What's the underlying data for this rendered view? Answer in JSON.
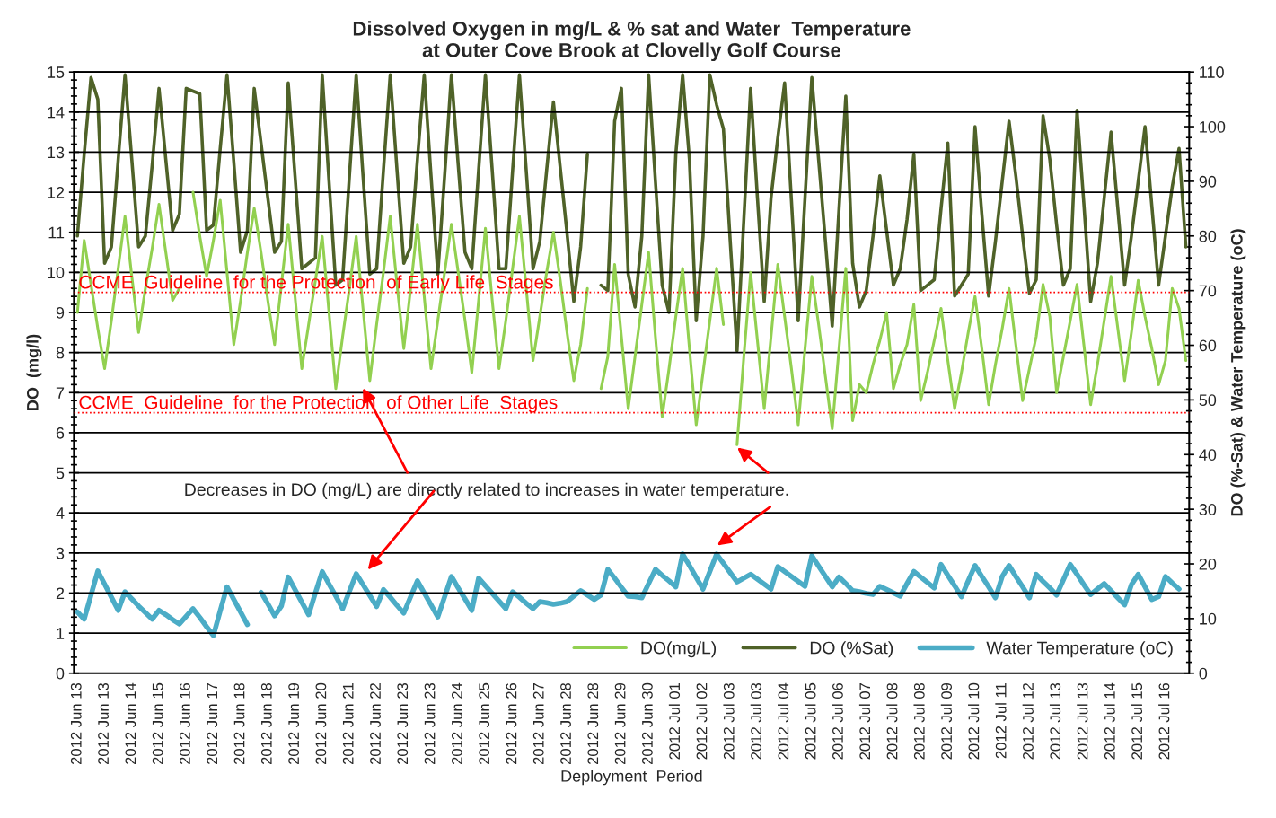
{
  "chart_data": {
    "type": "line",
    "title": "Dissolved Oxygen in mg/L & % sat and Water  Temperature\nat Outer Cove Brook at Clovelly Golf Course",
    "xlabel": "Deployment  Period",
    "ylabel": "DO  (mg/l)",
    "y2label": "DO (%-Sat) & Water Temperature (oC)",
    "categories": [
      "2012 Jun 13",
      null,
      null,
      null,
      "2012 Jun 13",
      null,
      null,
      null,
      "2012 Jun 14",
      null,
      null,
      null,
      "2012 Jun 15",
      null,
      null,
      null,
      "2012 Jun 16",
      null,
      null,
      null,
      "2012 Jun 17",
      null,
      null,
      null,
      "2012 Jun 18",
      null,
      null,
      null,
      "2012 Jun 18",
      null,
      null,
      null,
      "2012 Jun 19",
      null,
      null,
      null,
      "2012 Jun 20",
      null,
      null,
      null,
      "2012 Jun 21",
      null,
      null,
      null,
      "2012 Jun 22",
      null,
      null,
      null,
      "2012 Jun 23",
      null,
      null,
      null,
      "2012 Jun 23",
      null,
      null,
      null,
      "2012 Jun 24",
      null,
      null,
      null,
      "2012 Jun 25",
      null,
      null,
      null,
      "2012 Jun 26",
      null,
      null,
      null,
      "2012 Jun 27",
      null,
      null,
      null,
      "2012 Jun 28",
      null,
      null,
      null,
      "2012 Jun 28",
      null,
      null,
      null,
      "2012 Jun 29",
      null,
      null,
      null,
      "2012 Jun 30",
      null,
      null,
      null,
      "2012 Jul 01",
      null,
      null,
      null,
      "2012 Jul 02",
      null,
      null,
      null,
      "2012 Jul 03",
      null,
      null,
      null,
      "2012 Jul 03",
      null,
      null,
      null,
      "2012 Jul 04",
      null,
      null,
      null,
      "2012 Jul 05",
      null,
      null,
      null,
      "2012 Jul 06",
      null,
      null,
      null,
      "2012 Jul 07",
      null,
      null,
      null,
      "2012 Jul 08",
      null,
      null,
      null,
      "2012 Jul 08",
      null,
      null,
      null,
      "2012 Jul 09",
      null,
      null,
      null,
      "2012 Jul 10",
      null,
      null,
      null,
      "2012 Jul 11",
      null,
      null,
      null,
      "2012 Jul 12",
      null,
      null,
      null,
      "2012 Jul 13",
      null,
      null,
      null,
      "2012 Jul 13",
      null,
      null,
      null,
      "2012 Jul 14",
      null,
      null,
      null,
      "2012 Jul 15",
      null,
      null,
      null,
      "2012 Jul 16",
      null,
      null,
      null
    ],
    "ylim": [
      0,
      15
    ],
    "yticks": [
      0,
      1,
      2,
      3,
      4,
      5,
      6,
      7,
      8,
      9,
      10,
      11,
      12,
      13,
      14,
      15
    ],
    "y2lim": [
      0,
      110
    ],
    "y2ticks": [
      0,
      10,
      20,
      30,
      40,
      50,
      60,
      70,
      80,
      90,
      100,
      110
    ],
    "grid": "y",
    "legend": "bottom right",
    "series": [
      {
        "name": "DO(mg/L)",
        "color": "#92d050",
        "axis": "y",
        "values": [
          9.0,
          10.8,
          9.7,
          8.6,
          7.6,
          8.8,
          10.1,
          11.4,
          9.9,
          8.5,
          9.6,
          10.6,
          11.7,
          10.5,
          9.3,
          9.6,
          null,
          12.0,
          10.9,
          9.9,
          10.8,
          11.8,
          10.0,
          8.2,
          9.3,
          10.5,
          11.6,
          10.5,
          9.3,
          8.2,
          9.7,
          11.2,
          9.4,
          7.6,
          8.7,
          9.8,
          10.9,
          9.0,
          7.1,
          8.4,
          9.6,
          10.9,
          9.1,
          7.3,
          8.7,
          10.0,
          11.4,
          9.7,
          8.1,
          9.6,
          11.2,
          9.4,
          7.6,
          8.8,
          10.0,
          11.2,
          10.0,
          8.8,
          7.5,
          9.3,
          11.1,
          9.3,
          7.6,
          8.8,
          10.1,
          11.4,
          9.6,
          7.8,
          8.9,
          10.0,
          11.0,
          9.8,
          8.5,
          7.3,
          8.2,
          9.6,
          null,
          7.1,
          7.9,
          10.2,
          8.4,
          6.6,
          7.9,
          9.2,
          10.5,
          8.4,
          6.4,
          7.6,
          8.9,
          10.1,
          8.1,
          6.2,
          7.5,
          8.8,
          10.1,
          8.7,
          null,
          5.7,
          7.9,
          10.0,
          8.3,
          6.6,
          8.4,
          10.2,
          8.9,
          7.6,
          6.2,
          8.1,
          9.9,
          8.7,
          7.4,
          6.1,
          8.1,
          10.1,
          6.3,
          7.2,
          7.0,
          7.7,
          8.3,
          9.0,
          7.1,
          7.7,
          8.2,
          9.2,
          6.8,
          7.5,
          8.3,
          9.1,
          7.8,
          6.6,
          7.5,
          8.5,
          9.4,
          8.1,
          6.7,
          7.7,
          8.6,
          9.6,
          8.2,
          6.8,
          7.6,
          8.4,
          9.7,
          8.9,
          7.0,
          7.9,
          8.8,
          9.7,
          8.2,
          6.7,
          7.7,
          8.8,
          9.9,
          8.6,
          7.3,
          8.5,
          9.8,
          8.9,
          8.1,
          7.2,
          7.8,
          9.6,
          9.1,
          7.8
        ]
      },
      {
        "name": "DO (%Sat)",
        "color": "#4f6228",
        "axis": "y2",
        "values": [
          80,
          95,
          109,
          105,
          75,
          78,
          94,
          109.5,
          94,
          78,
          80,
          93,
          107,
          94,
          81,
          84,
          107,
          106.5,
          106,
          81,
          82,
          96,
          109.5,
          93.5,
          77,
          81,
          107,
          97,
          87,
          77,
          79,
          108,
          91,
          74,
          75,
          76,
          109.5,
          90,
          71,
          72,
          91,
          109.5,
          91,
          73,
          74,
          92,
          109.5,
          92,
          75,
          78,
          94,
          109.5,
          91,
          73,
          91,
          109.5,
          93,
          77,
          74,
          92,
          109.5,
          92,
          74,
          74,
          92,
          109.5,
          92,
          74,
          79,
          92,
          104.5,
          92.5,
          80.5,
          68,
          78,
          95,
          null,
          71,
          70,
          101,
          107,
          73,
          67,
          80,
          109.5,
          90,
          71,
          66,
          95,
          109.5,
          94,
          64.5,
          80,
          109.5,
          104,
          99.6,
          79,
          59,
          83,
          107,
          87,
          68,
          87,
          98,
          108,
          86.5,
          64.5,
          87,
          109,
          94,
          79,
          63.5,
          85,
          105.6,
          75,
          67,
          70,
          80,
          91,
          81,
          71,
          74,
          83,
          95,
          70,
          71,
          72,
          85,
          97,
          69,
          71,
          73,
          100,
          84,
          69,
          79,
          90,
          101,
          91,
          80,
          69.5,
          72,
          102,
          94,
          82,
          71,
          74,
          103,
          86,
          68,
          75,
          87,
          99,
          85,
          71,
          80,
          90,
          100,
          85.5,
          71,
          80,
          89,
          96,
          78
        ]
      },
      {
        "name": "Water Temperature (oC)",
        "color": "#4bacc6",
        "axis": "y2",
        "values": [
          11.2,
          9.9,
          14.3,
          18.7,
          16.3,
          13.9,
          11.5,
          14.9,
          13.6,
          12.3,
          11.1,
          9.9,
          11.5,
          10.7,
          9.8,
          9.0,
          10.4,
          11.8,
          10.2,
          8.5,
          6.9,
          11.4,
          15.8,
          13.5,
          11.2,
          8.9,
          null,
          14.8,
          12.7,
          10.5,
          12.3,
          17.6,
          15.3,
          13.0,
          10.7,
          14.7,
          18.6,
          16.3,
          14.1,
          11.8,
          15.0,
          18.2,
          16.2,
          14.2,
          12.2,
          15.3,
          13.9,
          12.4,
          11.0,
          14.0,
          16.9,
          14.7,
          12.5,
          10.3,
          14.0,
          17.7,
          15.6,
          13.6,
          11.5,
          17.4,
          16.0,
          14.6,
          13.2,
          11.8,
          14.9,
          13.9,
          12.8,
          11.8,
          13.1,
          12.9,
          12.6,
          12.8,
          13.1,
          14.1,
          15.1,
          14.3,
          13.5,
          14.3,
          19.0,
          17.4,
          15.7,
          14.1,
          14.0,
          13.8,
          16.4,
          19.0,
          17.9,
          16.9,
          15.8,
          21.8,
          19.7,
          17.5,
          15.4,
          18.6,
          21.8,
          20.1,
          18.4,
          16.7,
          17.4,
          18.1,
          17.2,
          16.3,
          15.4,
          19.5,
          18.6,
          17.7,
          16.8,
          15.9,
          21.5,
          19.6,
          17.7,
          15.8,
          17.6,
          16.4,
          15.1,
          14.9,
          14.6,
          14.4,
          15.9,
          15.3,
          14.7,
          14.1,
          16.4,
          18.6,
          17.6,
          16.6,
          15.6,
          19.9,
          17.9,
          16.0,
          14.0,
          16.9,
          19.7,
          17.7,
          15.8,
          13.8,
          17.7,
          19.7,
          17.7,
          15.8,
          13.8,
          18.1,
          16.8,
          15.6,
          14.3,
          17.1,
          19.9,
          18.1,
          16.2,
          14.4,
          15.4,
          16.4,
          15.1,
          13.8,
          12.5,
          16.2,
          18.1,
          15.8,
          13.5,
          14.0,
          17.7,
          16.5,
          15.4,
          null
        ]
      }
    ],
    "ref_lines": [
      {
        "axis": "y",
        "value": 9.5,
        "label": "CCME  Guideline  for the Protection  of Early Life  Stages",
        "color": "#ff0000",
        "line_style": "dotted"
      },
      {
        "axis": "y",
        "value": 6.5,
        "label": "CCME  Guideline  for the Protection  of Other Life  Stages",
        "color": "#ff0000",
        "line_style": "dotted"
      }
    ],
    "annotations": [
      "Decreases in DO (mg/L) are directly related to increases in water temperature."
    ]
  }
}
